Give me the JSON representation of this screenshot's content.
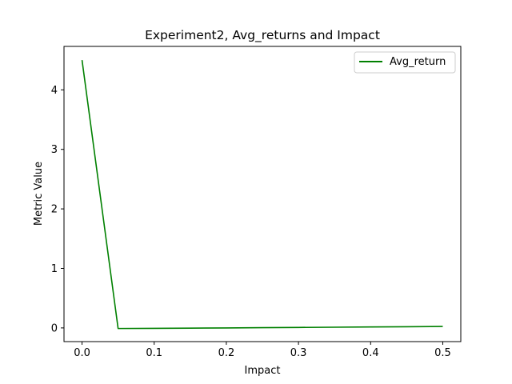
{
  "chart_data": {
    "type": "line",
    "title": "Experiment2, Avg_returns and Impact",
    "xlabel": "Impact",
    "ylabel": "Metric Value",
    "x": [
      0.0,
      0.05,
      0.1,
      0.15,
      0.2,
      0.25,
      0.3,
      0.35,
      0.4,
      0.45,
      0.5
    ],
    "series": [
      {
        "name": "Avg_return",
        "color": "#008000",
        "values": [
          4.5,
          -0.01,
          -0.007,
          -0.004,
          0.0,
          0.004,
          0.008,
          0.012,
          0.016,
          0.02,
          0.025
        ]
      }
    ],
    "xlim": [
      -0.025,
      0.525
    ],
    "ylim": [
      -0.23,
      4.73
    ],
    "xticks": [
      0.0,
      0.1,
      0.2,
      0.3,
      0.4,
      0.5
    ],
    "xtick_labels": [
      "0.0",
      "0.1",
      "0.2",
      "0.3",
      "0.4",
      "0.5"
    ],
    "yticks": [
      0,
      1,
      2,
      3,
      4
    ],
    "ytick_labels": [
      "0",
      "1",
      "2",
      "3",
      "4"
    ],
    "grid": false,
    "legend_position": "upper right"
  }
}
